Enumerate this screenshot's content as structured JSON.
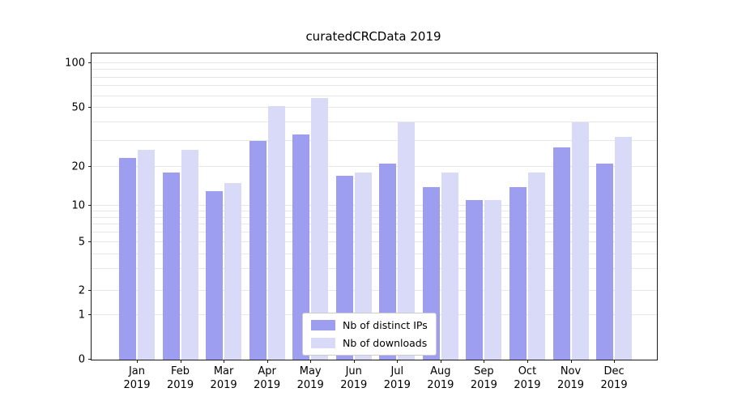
{
  "chart_data": {
    "type": "bar",
    "title": "curatedCRCData 2019",
    "categories": [
      "Jan",
      "Feb",
      "Mar",
      "Apr",
      "May",
      "Jun",
      "Jul",
      "Aug",
      "Sep",
      "Oct",
      "Nov",
      "Dec"
    ],
    "year_label": "2019",
    "x_tick_labels": [
      "Jan 2019",
      "Feb 2019",
      "Mar 2019",
      "Apr 2019",
      "May 2019",
      "Jun 2019",
      "Jul 2019",
      "Aug 2019",
      "Sep 2019",
      "Oct 2019",
      "Nov 2019",
      "Dec 2019"
    ],
    "series": [
      {
        "name": "Nb of distinct IPs",
        "color": "#9e9ef0",
        "values": [
          23,
          18,
          13,
          30,
          33,
          17,
          21,
          14,
          11,
          14,
          27,
          21
        ]
      },
      {
        "name": "Nb of downloads",
        "color": "#d9d9f8",
        "values": [
          26,
          26,
          15,
          51,
          58,
          18,
          40,
          18,
          11,
          18,
          40,
          32
        ]
      }
    ],
    "yscale": "symlog",
    "yticks": [
      0,
      1,
      2,
      5,
      10,
      20,
      50,
      100
    ],
    "ylim": [
      0,
      100
    ],
    "xlabel": "",
    "ylabel": "",
    "grid": true,
    "legend_position": "lower center",
    "colors": {
      "grid": "#e6e6e6",
      "axis": "#1a1a1a",
      "text": "#000000",
      "background": "#ffffff"
    }
  }
}
